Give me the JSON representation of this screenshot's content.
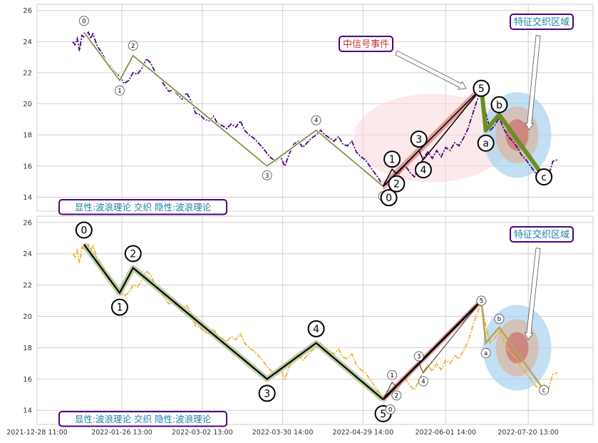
{
  "chart_data": {
    "type": "line",
    "x_ticks": [
      "2021-12-28 11:00",
      "2022-01-26 13:00",
      "2022-03-02 13:00",
      "2022-03-30 14:00",
      "2022-04-29 14:00",
      "2022-06-01 14:00",
      "2022-07-20 13:00"
    ],
    "y_ticks": [
      14,
      16,
      18,
      20,
      22,
      24,
      26
    ],
    "ylim": [
      13.1,
      26.4
    ],
    "grid": true,
    "price_series_top": [
      [
        0.5,
        24.0
      ],
      [
        1,
        23.8
      ],
      [
        1.5,
        24.2
      ],
      [
        2,
        23.4
      ],
      [
        2.5,
        24.4
      ],
      [
        3,
        24.3
      ],
      [
        4,
        24.6
      ],
      [
        4.5,
        24.2
      ],
      [
        5,
        24.5
      ],
      [
        6,
        23.7
      ],
      [
        7,
        23.3
      ],
      [
        8,
        22.7
      ],
      [
        9,
        22.4
      ],
      [
        10,
        22.0
      ],
      [
        11,
        21.8
      ],
      [
        12,
        21.3
      ],
      [
        13,
        21.5
      ],
      [
        14,
        22.0
      ],
      [
        15,
        21.9
      ],
      [
        16,
        22.3
      ],
      [
        17,
        22.9
      ],
      [
        18,
        22.6
      ],
      [
        19,
        22.0
      ],
      [
        20,
        21.7
      ],
      [
        21,
        21.2
      ],
      [
        22,
        20.8
      ],
      [
        23,
        20.9
      ],
      [
        24,
        20.6
      ],
      [
        25,
        20.3
      ],
      [
        26,
        20.7
      ],
      [
        27,
        20.2
      ],
      [
        28,
        19.4
      ],
      [
        29,
        19.3
      ],
      [
        30,
        19.0
      ],
      [
        31,
        18.9
      ],
      [
        32,
        19.2
      ],
      [
        33,
        18.7
      ],
      [
        34,
        18.6
      ],
      [
        35,
        18.4
      ],
      [
        36,
        18.7
      ],
      [
        37,
        18.5
      ],
      [
        38,
        18.9
      ],
      [
        39,
        18.3
      ],
      [
        40,
        18.0
      ],
      [
        41,
        17.8
      ],
      [
        42,
        17.5
      ],
      [
        43,
        17.2
      ],
      [
        44,
        16.8
      ],
      [
        45,
        16.5
      ],
      [
        46,
        16.3
      ],
      [
        47,
        16.6
      ],
      [
        48,
        16.0
      ],
      [
        49,
        16.8
      ],
      [
        50,
        17.4
      ],
      [
        51,
        17.6
      ],
      [
        52,
        17.2
      ],
      [
        53,
        17.5
      ],
      [
        54,
        17.8
      ],
      [
        55,
        18.0
      ],
      [
        56,
        18.3
      ],
      [
        57,
        18.0
      ],
      [
        58,
        17.8
      ],
      [
        59,
        17.6
      ],
      [
        60,
        17.9
      ],
      [
        61,
        17.4
      ],
      [
        62,
        17.3
      ],
      [
        63,
        17.6
      ],
      [
        64,
        16.9
      ],
      [
        65,
        16.6
      ],
      [
        66,
        16.4
      ],
      [
        67,
        16.0
      ],
      [
        68,
        15.6
      ],
      [
        69,
        15.2
      ],
      [
        70,
        14.7
      ],
      [
        71,
        14.9
      ],
      [
        72,
        15.3
      ],
      [
        73,
        15.1
      ],
      [
        74,
        15.8
      ],
      [
        75,
        16.0
      ],
      [
        76,
        15.6
      ],
      [
        77,
        15.3
      ],
      [
        78,
        15.9
      ],
      [
        79,
        16.5
      ],
      [
        80,
        16.9
      ],
      [
        81,
        16.5
      ],
      [
        82,
        17.0
      ],
      [
        83,
        16.6
      ],
      [
        84,
        17.2
      ],
      [
        85,
        17.0
      ],
      [
        86,
        17.5
      ],
      [
        87,
        17.3
      ],
      [
        88,
        17.8
      ],
      [
        89,
        18.4
      ],
      [
        90,
        19.3
      ],
      [
        91,
        20.2
      ],
      [
        92,
        20.8
      ],
      [
        93,
        19.4
      ],
      [
        94,
        18.3
      ],
      [
        95,
        18.6
      ],
      [
        96,
        19.1
      ],
      [
        97,
        18.4
      ],
      [
        98,
        17.9
      ],
      [
        99,
        17.6
      ],
      [
        100,
        17.2
      ],
      [
        101,
        16.7
      ],
      [
        102,
        16.4
      ],
      [
        103,
        16.0
      ],
      [
        104,
        15.6
      ],
      [
        105,
        15.4
      ],
      [
        106,
        15.6
      ],
      [
        107,
        15.3
      ],
      [
        108,
        16.3
      ],
      [
        109,
        16.4
      ]
    ],
    "price_series_bottom": [
      [
        0.5,
        24.0
      ],
      [
        1,
        23.8
      ],
      [
        1.5,
        24.2
      ],
      [
        2,
        23.4
      ],
      [
        2.5,
        24.4
      ],
      [
        3,
        24.3
      ],
      [
        4,
        24.6
      ],
      [
        4.5,
        24.2
      ],
      [
        5,
        24.5
      ],
      [
        6,
        23.7
      ],
      [
        7,
        23.3
      ],
      [
        8,
        22.7
      ],
      [
        9,
        22.4
      ],
      [
        10,
        22.0
      ],
      [
        11,
        21.8
      ],
      [
        12,
        21.3
      ],
      [
        13,
        21.5
      ],
      [
        14,
        22.0
      ],
      [
        15,
        21.9
      ],
      [
        16,
        22.3
      ],
      [
        17,
        22.9
      ],
      [
        18,
        22.6
      ],
      [
        19,
        22.0
      ],
      [
        20,
        21.7
      ],
      [
        21,
        21.2
      ],
      [
        22,
        20.8
      ],
      [
        23,
        20.9
      ],
      [
        24,
        20.6
      ],
      [
        25,
        20.3
      ],
      [
        26,
        20.7
      ],
      [
        27,
        20.2
      ],
      [
        28,
        19.4
      ],
      [
        29,
        19.3
      ],
      [
        30,
        19.0
      ],
      [
        31,
        18.9
      ],
      [
        32,
        19.2
      ],
      [
        33,
        18.7
      ],
      [
        34,
        18.6
      ],
      [
        35,
        18.4
      ],
      [
        36,
        18.7
      ],
      [
        37,
        18.5
      ],
      [
        38,
        18.9
      ],
      [
        39,
        18.3
      ],
      [
        40,
        18.0
      ],
      [
        41,
        17.8
      ],
      [
        42,
        17.5
      ],
      [
        43,
        17.2
      ],
      [
        44,
        16.8
      ],
      [
        45,
        16.5
      ],
      [
        46,
        16.3
      ],
      [
        47,
        16.6
      ],
      [
        48,
        16.0
      ],
      [
        49,
        16.8
      ],
      [
        50,
        17.4
      ],
      [
        51,
        17.6
      ],
      [
        52,
        17.2
      ],
      [
        53,
        17.5
      ],
      [
        54,
        17.8
      ],
      [
        55,
        18.0
      ],
      [
        56,
        18.3
      ],
      [
        57,
        18.0
      ],
      [
        58,
        17.8
      ],
      [
        59,
        17.6
      ],
      [
        60,
        17.9
      ],
      [
        61,
        17.4
      ],
      [
        62,
        17.3
      ],
      [
        63,
        17.6
      ],
      [
        64,
        16.9
      ],
      [
        65,
        16.6
      ],
      [
        66,
        16.4
      ],
      [
        67,
        16.0
      ],
      [
        68,
        15.6
      ],
      [
        69,
        15.2
      ],
      [
        70,
        14.7
      ],
      [
        71,
        14.9
      ],
      [
        72,
        15.3
      ],
      [
        73,
        15.1
      ],
      [
        74,
        15.8
      ],
      [
        75,
        16.0
      ],
      [
        76,
        15.6
      ],
      [
        77,
        15.3
      ],
      [
        78,
        15.9
      ],
      [
        79,
        16.5
      ],
      [
        80,
        16.9
      ],
      [
        81,
        16.5
      ],
      [
        82,
        17.0
      ],
      [
        83,
        16.6
      ],
      [
        84,
        17.2
      ],
      [
        85,
        17.0
      ],
      [
        86,
        17.5
      ],
      [
        87,
        17.3
      ],
      [
        88,
        17.8
      ],
      [
        89,
        18.4
      ],
      [
        90,
        19.3
      ],
      [
        91,
        20.2
      ],
      [
        92,
        20.8
      ],
      [
        93,
        19.4
      ],
      [
        94,
        18.3
      ],
      [
        95,
        18.6
      ],
      [
        96,
        19.1
      ],
      [
        97,
        18.4
      ],
      [
        98,
        17.9
      ],
      [
        99,
        17.6
      ],
      [
        100,
        17.2
      ],
      [
        101,
        16.7
      ],
      [
        102,
        16.4
      ],
      [
        103,
        16.0
      ],
      [
        104,
        15.6
      ],
      [
        105,
        15.4
      ],
      [
        106,
        15.6
      ],
      [
        107,
        15.3
      ],
      [
        108,
        16.3
      ],
      [
        109,
        16.4
      ]
    ],
    "major_wave": [
      [
        3,
        24.6
      ],
      [
        11,
        21.5
      ],
      [
        14,
        23.1
      ],
      [
        44,
        16.0
      ],
      [
        55,
        18.3
      ],
      [
        70,
        14.7
      ]
    ],
    "major_labels": [
      "0",
      "1",
      "2",
      "3",
      "4",
      "5"
    ],
    "minor_wave": [
      [
        70,
        14.7
      ],
      [
        72,
        15.8
      ],
      [
        73,
        15.5
      ],
      [
        78,
        17.0
      ],
      [
        79,
        16.4
      ],
      [
        92,
        21.0
      ]
    ],
    "minor_labels": [
      "0",
      "1",
      "2",
      "3",
      "4",
      "5"
    ],
    "abc_wave": [
      [
        92,
        21.0
      ],
      [
        93,
        18.3
      ],
      [
        96,
        19.3
      ],
      [
        106,
        15.3
      ]
    ],
    "abc_labels": [
      "a",
      "b",
      "c"
    ],
    "top_label_sizes": {
      "major": "small",
      "minor": "large",
      "abc": "large"
    },
    "bottom_label_sizes": {
      "major": "large",
      "minor": "small",
      "abc": "small"
    },
    "annotations": {
      "signal_event": "中信号事件",
      "feature_zone": "特征交织区域",
      "panel_caption": "显性:波浪理论 交织 隐性:波浪理论"
    },
    "colors": {
      "price_top": "#4b0082",
      "price_bottom": "#f0b030",
      "wave_top_major": "#556b2f",
      "wave_bottom_major": "#000000",
      "abc_top": "#6b8e23",
      "highlight_red": "#cd5c5c",
      "ellipse_pink": "#f8d7da",
      "ellipse_blue": "#a8d1ee",
      "caption_text": "#1e7fa6",
      "caption_border": "#4b0082",
      "signal_text": "#c0392b"
    }
  }
}
